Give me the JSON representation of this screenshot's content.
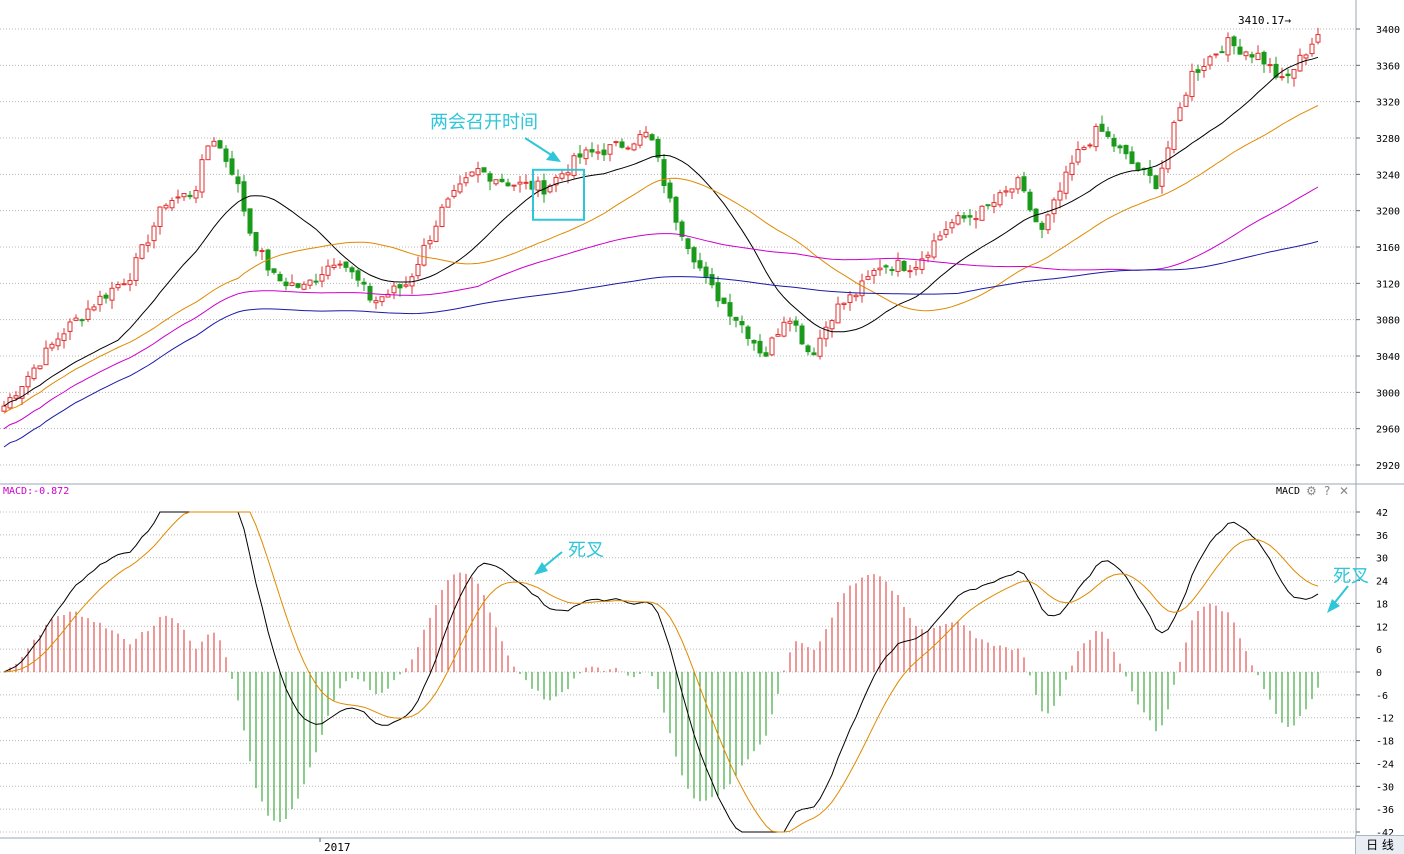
{
  "chart_data": [
    {
      "type": "candlestick",
      "title": "",
      "y_axis_ticks": [
        2920,
        2960,
        3000,
        3040,
        3080,
        3120,
        3160,
        3200,
        3240,
        3280,
        3320,
        3360,
        3400
      ],
      "ylim": [
        2900,
        3425
      ],
      "x_axis_label": "2017",
      "high_marker": {
        "label": "3410.17",
        "value": 3410.17
      },
      "annotations": [
        {
          "text": "两会召开时间"
        }
      ],
      "colors": {
        "up": "#e03030",
        "down": "#1a9a1a",
        "ma5": "#000000",
        "ma10": "#e08a00",
        "ma20": "#cc00cc",
        "ma60": "#1a1aa8"
      },
      "grid": true
    },
    {
      "type": "bar+line",
      "title": "MACD:-0.872",
      "indicator_name": "MACD",
      "y_axis_ticks": [
        42,
        36,
        30,
        24,
        18,
        12,
        6,
        0,
        -6,
        -12,
        -18,
        -24,
        -30,
        -36,
        -42
      ],
      "ylim": [
        -44,
        44
      ],
      "annotations": [
        {
          "text": "死叉"
        },
        {
          "text": "死叉"
        }
      ],
      "colors": {
        "positive": "#e03030",
        "negative": "#1a9a1a",
        "dif": "#000000",
        "dea": "#e08a00"
      },
      "grid": true
    }
  ],
  "ui": {
    "period_button": "日 线",
    "tool_icons": [
      "gear-icon",
      "help-icon",
      "close-icon"
    ]
  }
}
